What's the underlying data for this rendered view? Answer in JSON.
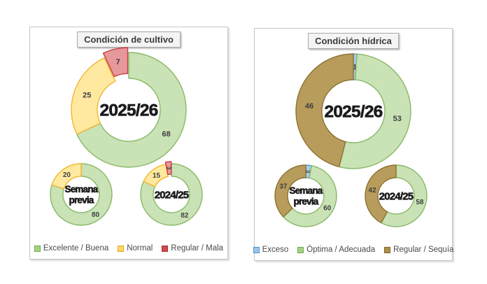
{
  "chart_data": [
    {
      "type": "donut",
      "title": "Condición de cultivo",
      "legend_position": "bottom",
      "series": [
        {
          "name": "Excelente / Buena",
          "fill": "#c9e2b6",
          "stroke": "#8ab866",
          "marker_fill": "#a3d285",
          "marker_stroke": "#72a84f"
        },
        {
          "name": "Normal",
          "fill": "#ffe9a1",
          "stroke": "#f4b52f",
          "marker_fill": "#ffd95f",
          "marker_stroke": "#dfa32f"
        },
        {
          "name": "Regular / Mala",
          "fill": "#e6989b",
          "stroke": "#cb3d43",
          "marker_fill": "#d2494c",
          "marker_stroke": "#a92f33"
        }
      ],
      "donuts": [
        {
          "name": "2025/26",
          "center_label": [
            "2025/26"
          ],
          "values": [
            68,
            25,
            7
          ],
          "explode": [
            0,
            0,
            7
          ]
        },
        {
          "name": "Semana previa",
          "center_label": [
            "Semana",
            "previa"
          ],
          "values": [
            80,
            20,
            0
          ]
        },
        {
          "name": "2024/25",
          "center_label": [
            "2024/25"
          ],
          "values": [
            82,
            15,
            3
          ],
          "explode": [
            0,
            0,
            3
          ],
          "rotate": [
            0,
            0,
            90
          ]
        }
      ]
    },
    {
      "type": "donut",
      "title": "Condición hídrica",
      "legend_position": "bottom",
      "series": [
        {
          "name": "Exceso",
          "fill": "#a9cce9",
          "stroke": "#5d9bd3",
          "marker_fill": "#9dc3e6",
          "marker_stroke": "#4f93ce"
        },
        {
          "name": "Óptima / Adecuada",
          "fill": "#c9e2b6",
          "stroke": "#8ab866",
          "marker_fill": "#a3d285",
          "marker_stroke": "#72a84f"
        },
        {
          "name": "Regular / Sequía",
          "fill": "#b79c5b",
          "stroke": "#8c7331",
          "marker_fill": "#ab9048",
          "marker_stroke": "#7c6527"
        }
      ],
      "donuts": [
        {
          "name": "2025/26",
          "center_label": [
            "2025/26"
          ],
          "values": [
            1,
            53,
            46
          ]
        },
        {
          "name": "Semana previa",
          "center_label": [
            "Semana",
            "previa"
          ],
          "values": [
            3,
            60,
            37
          ],
          "rotate": [
            90,
            0,
            0
          ]
        },
        {
          "name": "2024/25",
          "center_label": [
            "2024/25"
          ],
          "values": [
            0,
            58,
            42
          ]
        }
      ]
    }
  ]
}
